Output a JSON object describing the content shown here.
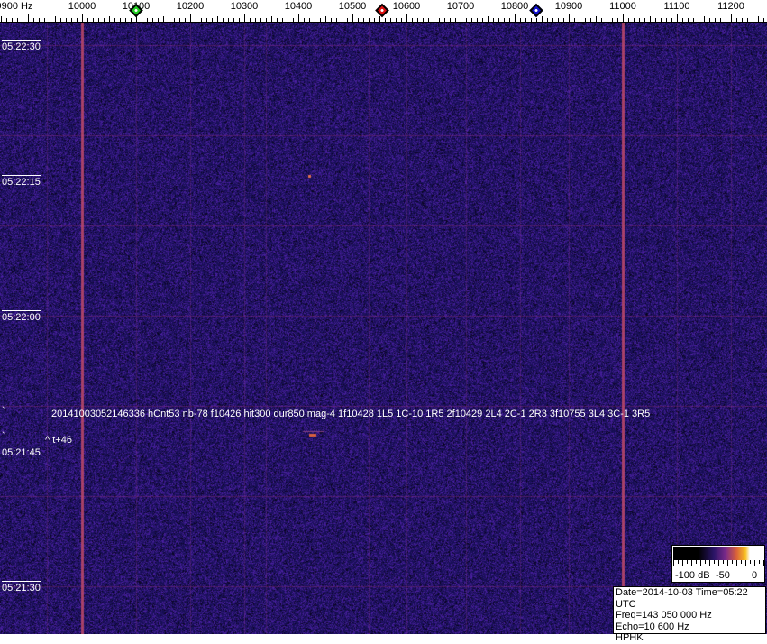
{
  "chart_data": {
    "type": "heatmap",
    "title": "",
    "x_axis": {
      "unit": "Hz",
      "range": [
        9880,
        11300
      ],
      "tick_labels": [
        "9900 Hz",
        "10000",
        "10100",
        "10200",
        "10300",
        "10400",
        "10500",
        "10600",
        "10700",
        "10800",
        "10900",
        "11000",
        "11100",
        "11200"
      ],
      "tick_values": [
        9900,
        10000,
        10100,
        10200,
        10300,
        10400,
        10500,
        10600,
        10700,
        10800,
        10900,
        11000,
        11100,
        11200
      ],
      "minor_tick_step": 10
    },
    "y_axis": {
      "tick_labels": [
        "05:22:30",
        "05:22:15",
        "05:22:00",
        "05:21:45",
        "05:21:30"
      ],
      "seconds_per_gridline": 10,
      "direction": "time increases upward"
    },
    "markers": [
      {
        "color": "#22cc22",
        "freq": 10100
      },
      {
        "color": "#dd1111",
        "freq": 10555
      },
      {
        "color": "#1111cc",
        "freq": 10840
      }
    ],
    "carriers": [
      10000,
      11000
    ],
    "echoes": [
      {
        "freq": 10420,
        "time": "05:22:15"
      },
      {
        "freq": 10428,
        "time": "05:21:47"
      }
    ],
    "colorbar": {
      "labels": [
        "-100 dB",
        "-50",
        "0"
      ],
      "range_db": [
        -100,
        0
      ],
      "colors": [
        "#000000",
        "#2a1466",
        "#7a2a8a",
        "#d8603a",
        "#f8c020",
        "#ffffff"
      ]
    },
    "background_color": "#1e1464"
  },
  "annotation": {
    "tick_mark_1": "`",
    "tick_mark_2": "`",
    "detection": "20141003052146336 hCnt53 nb-78 f10426 hit300 dur850 mag-4 1f10428 1L5 1C-10 1R5 2f10429 2L4 2C-1 2R3 3f10755 3L4 3C-1 3R5",
    "offset": "^ t+46"
  },
  "info": {
    "line1": "Date=2014-10-03 Time=05:22 UTC",
    "line2": "Freq=143 050 000 Hz",
    "line3": "Echo=10 600 Hz",
    "line4": "HPHK"
  }
}
